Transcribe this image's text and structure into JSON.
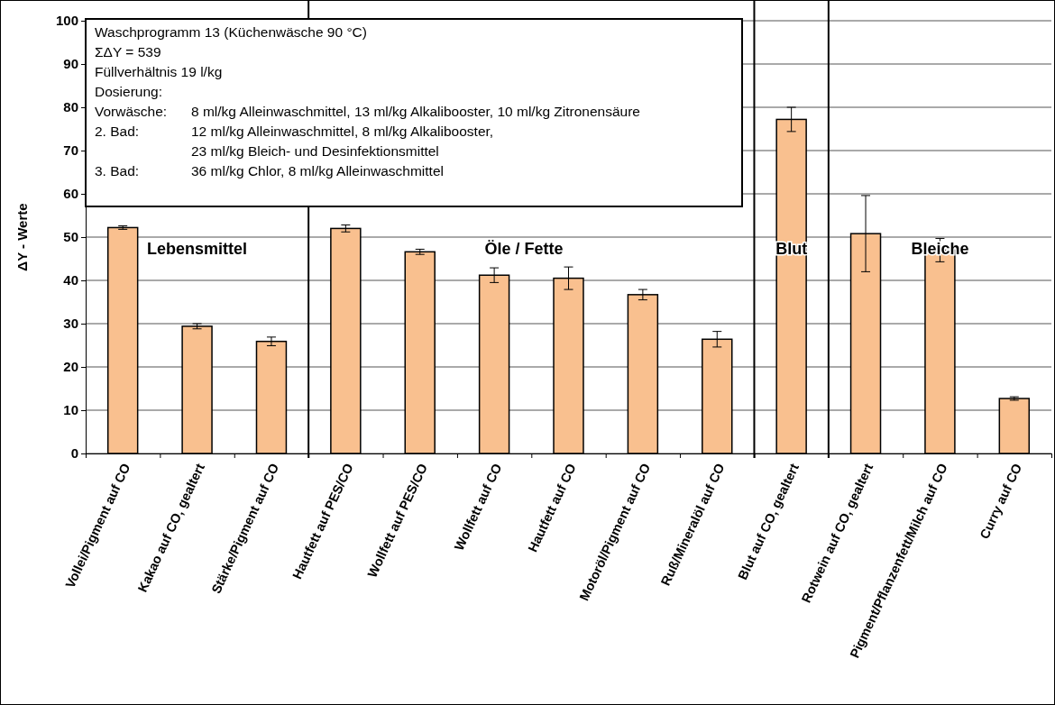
{
  "chart_data": {
    "type": "bar",
    "ylabel": "ΔY - Werte",
    "categories": [
      "Vollei/Pigment auf CO",
      "Kakao auf CO, gealtert",
      "Stärke/Pigment auf CO",
      "Hautfett auf PES/CO",
      "Wollfett auf PES/CO",
      "Wollfett auf CO",
      "Hautfett auf CO",
      "Motoröl/Pigment auf CO",
      "Ruß/Mineralöl auf CO",
      "Blut auf CO, gealtert",
      "Rotwein auf CO, gealtert",
      "Pigment/Pflanzenfett/Milch auf CO",
      "Curry auf CO"
    ],
    "values": [
      52.2,
      29.4,
      25.9,
      52.0,
      46.6,
      41.2,
      40.5,
      36.7,
      26.4,
      77.2,
      50.8,
      47.0,
      12.7
    ],
    "errors": [
      0.4,
      0.6,
      1.0,
      0.8,
      0.6,
      1.7,
      2.6,
      1.2,
      1.8,
      2.8,
      8.8,
      2.7,
      0.4
    ],
    "color": "#f9c08f",
    "ylim": [
      0,
      100
    ],
    "yticks": [
      0,
      10,
      20,
      30,
      40,
      50,
      60,
      70,
      80,
      90,
      100
    ],
    "grid": "y",
    "annotations": [
      "Lebensmittel",
      "Öle / Fette",
      "Blut",
      "Bleiche",
      "Waschprogramm 13 (Küchenwäsche 90 °C)",
      "ΣΔY = 539",
      "Füllverhältnis 19 l/kg",
      "Dosierung:",
      "Vorwäsche:\t8 ml/kg Alleinwaschmittel, 13 ml/kg Alkalibooster, 10 ml/kg Zitronensäure",
      "2. Bad:\t12 ml/kg Alleinwaschmittel, 8 ml/kg Alkalibooster,",
      "\t23 ml/kg Bleich- und Desinfektionsmittel",
      "3. Bad:\t36 ml/kg Chlor, 8 ml/kg Alleinwaschmittel"
    ]
  }
}
